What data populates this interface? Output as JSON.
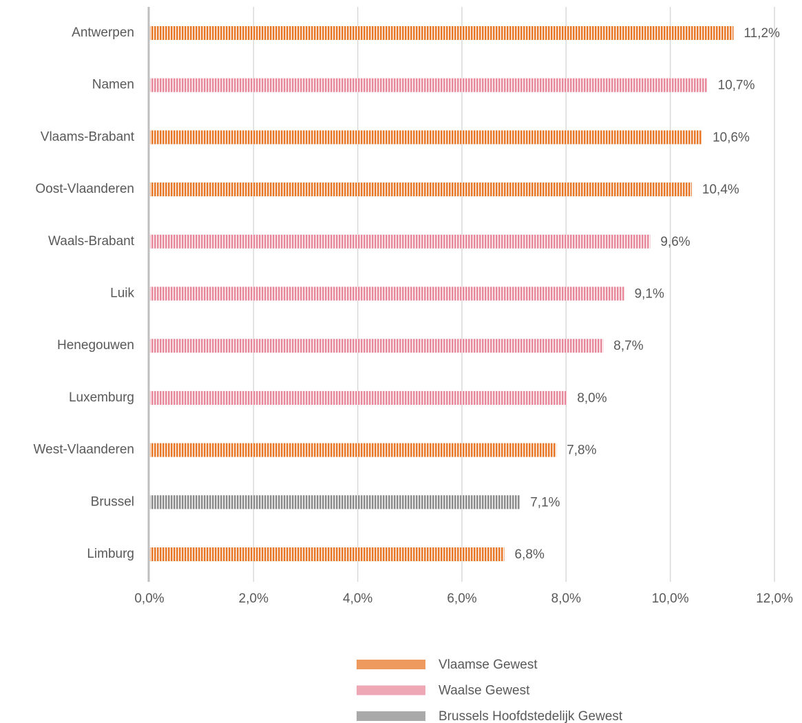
{
  "chart_data": {
    "type": "bar",
    "orientation": "horizontal",
    "categories": [
      "Antwerpen",
      "Namen",
      "Vlaams-Brabant",
      "Oost-Vlaanderen",
      "Waals-Brabant",
      "Luik",
      "Henegouwen",
      "Luxemburg",
      "West-Vlaanderen",
      "Brussel",
      "Limburg"
    ],
    "series": [
      {
        "name": "Vlaamse Gewest",
        "color": "#e8782a",
        "values": [
          11.2,
          null,
          10.6,
          10.4,
          null,
          null,
          null,
          null,
          7.8,
          null,
          6.8
        ],
        "value_labels": [
          "11,2%",
          null,
          "10,6%",
          "10,4%",
          null,
          null,
          null,
          null,
          "7,8%",
          null,
          "6,8%"
        ]
      },
      {
        "name": "Waalse Gewest",
        "color": "#e8899c",
        "values": [
          null,
          10.7,
          null,
          null,
          9.6,
          9.1,
          8.7,
          8.0,
          null,
          null,
          null
        ],
        "value_labels": [
          null,
          "10,7%",
          null,
          null,
          "9,6%",
          "9,1%",
          "8,7%",
          "8,0%",
          null,
          null,
          null
        ]
      },
      {
        "name": "Brussels Hoofdstedelijk Gewest",
        "color": "#8c8c8c",
        "values": [
          null,
          null,
          null,
          null,
          null,
          null,
          null,
          null,
          null,
          7.1,
          null
        ],
        "value_labels": [
          null,
          null,
          null,
          null,
          null,
          null,
          null,
          null,
          null,
          "7,1%",
          null
        ]
      }
    ],
    "xlim": [
      0,
      12
    ],
    "xticks": [
      {
        "value": 0,
        "label": "0,0%"
      },
      {
        "value": 2,
        "label": "2,0%"
      },
      {
        "value": 4,
        "label": "4,0%"
      },
      {
        "value": 6,
        "label": "6,0%"
      },
      {
        "value": 8,
        "label": "8,0%"
      },
      {
        "value": 10,
        "label": "10,0%"
      },
      {
        "value": 12,
        "label": "12,0%"
      }
    ],
    "grid": true,
    "legend": "bottom"
  }
}
